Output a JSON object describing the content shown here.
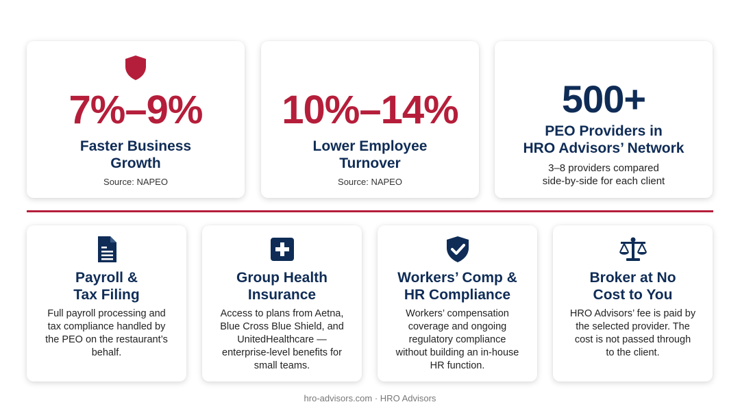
{
  "stats": [
    {
      "value": "7%–9%",
      "title_line1": "Faster Business",
      "title_line2": "Growth",
      "source": "Source: NAPEO"
    },
    {
      "value": "10%–14%",
      "title_line1": "Lower Employee",
      "title_line2": "Turnover",
      "source": "Source: NAPEO"
    },
    {
      "value": "500+",
      "title_line1": "PEO Providers in",
      "title_line2": "HRO Advisors’ Network",
      "sub_line1": "3–8 providers compared",
      "sub_line2": "side-by-side for each client"
    }
  ],
  "services": [
    {
      "icon": "document-icon",
      "title_line1": "Payroll &",
      "title_line2": "Tax Filing",
      "desc": [
        "Full payroll processing and",
        "tax compliance handled by",
        "the PEO on the restaurant’s",
        "behalf."
      ]
    },
    {
      "icon": "medical-plus-icon",
      "title_line1": "Group Health",
      "title_line2": "Insurance",
      "desc": [
        "Access to plans from Aetna,",
        "Blue Cross Blue Shield, and",
        "UnitedHealthcare —",
        "enterprise-level benefits for",
        "small teams."
      ]
    },
    {
      "icon": "shield-check-icon",
      "title_line1": "Workers’ Comp &",
      "title_line2": "HR Compliance",
      "desc": [
        "Workers’ compensation",
        "coverage and ongoing",
        "regulatory compliance",
        "without building an in-house",
        "HR function."
      ]
    },
    {
      "icon": "balance-scale-icon",
      "title_line1": "Broker at No",
      "title_line2": "Cost to You",
      "desc": [
        "HRO Advisors’ fee is paid by",
        "the selected provider. The",
        "cost is not passed through",
        "to the client."
      ]
    }
  ],
  "footer": "hro-advisors.com · HRO Advisors",
  "colors": {
    "accent_red": "#b51e3a",
    "navy": "#0f2c56"
  }
}
